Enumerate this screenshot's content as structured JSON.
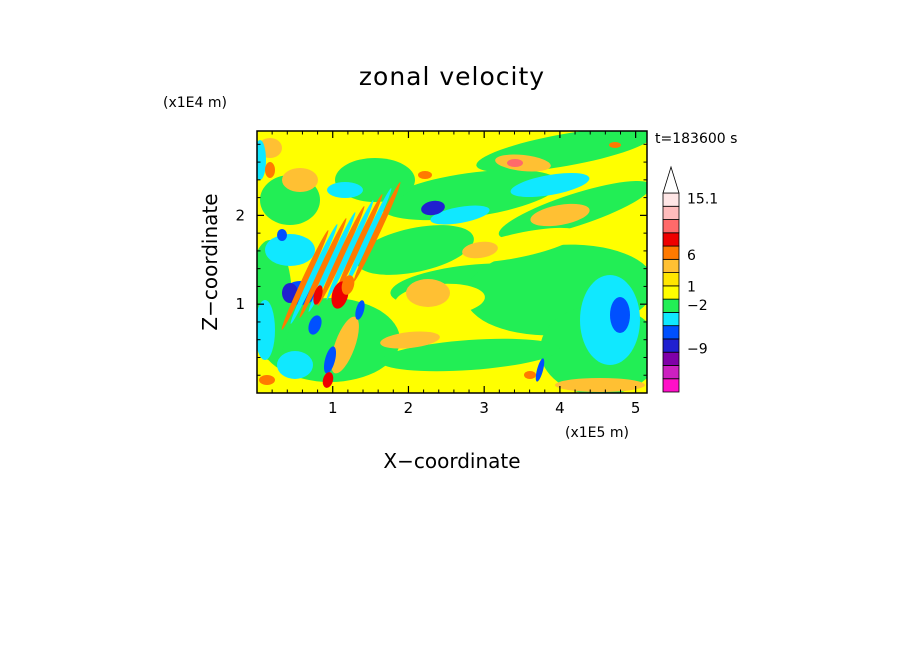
{
  "chart_data": {
    "type": "heatmap",
    "title": "zonal velocity",
    "xlabel": "X−coordinate",
    "ylabel": "Z−coordinate",
    "x_unit": "(x1E5 m)",
    "y_unit": "(x1E4 m)",
    "time_label": "t=183600 s",
    "xlim": [
      0,
      5.15
    ],
    "ylim": [
      0,
      2.95
    ],
    "x_ticks": [
      1,
      2,
      3,
      4,
      5
    ],
    "x_tick_labels": [
      "1",
      "2",
      "3",
      "4",
      "5"
    ],
    "y_ticks": [
      1,
      2
    ],
    "y_tick_labels": [
      "1",
      "2"
    ],
    "grid": false,
    "colorbar": {
      "labels": [
        {
          "value": 15.1,
          "text": "15.1"
        },
        {
          "value": 6,
          "text": "6"
        },
        {
          "value": 1,
          "text": "1"
        },
        {
          "value": -2,
          "text": "−2"
        },
        {
          "value": -9,
          "text": "−9"
        }
      ],
      "bands": [
        {
          "color": "#ff10c8"
        },
        {
          "color": "#cc20c0"
        },
        {
          "color": "#8000a8"
        },
        {
          "color": "#2020d0"
        },
        {
          "color": "#0050ff"
        },
        {
          "color": "#10e8ff"
        },
        {
          "color": "#22ee55"
        },
        {
          "color": "#ffff00"
        },
        {
          "color": "#ffe600"
        },
        {
          "color": "#ffc033"
        },
        {
          "color": "#ff7a00"
        },
        {
          "color": "#ee0000"
        },
        {
          "color": "#ff6a6a"
        },
        {
          "color": "#ffbcbc"
        },
        {
          "color": "#ffe6e6"
        }
      ]
    },
    "fill_colors": {
      "background": "#ffff00",
      "green": "#22ee55",
      "cyan": "#10e8ff",
      "blue": "#0050ff",
      "navy": "#2020d0",
      "light_orange": "#ffc033",
      "orange": "#ff7a00",
      "red": "#ee0000",
      "pink": "#ff6a6a"
    }
  }
}
